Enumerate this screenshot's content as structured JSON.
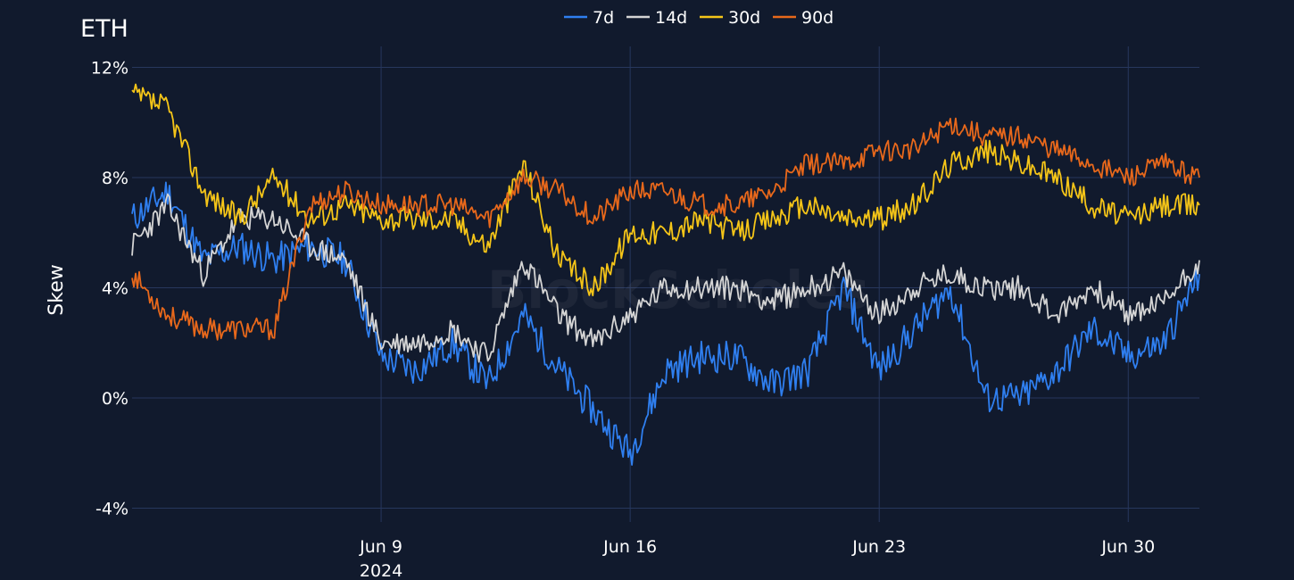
{
  "chart_data": {
    "type": "line",
    "title": "ETH",
    "ylabel": "Skew",
    "xlabel": "",
    "watermark": "BlockScholes",
    "x_ticks": [
      {
        "date": "2024-06-09",
        "label": "Jun 9",
        "sublabel": "2024"
      },
      {
        "date": "2024-06-16",
        "label": "Jun 16",
        "sublabel": ""
      },
      {
        "date": "2024-06-23",
        "label": "Jun 23",
        "sublabel": ""
      },
      {
        "date": "2024-06-30",
        "label": "Jun 30",
        "sublabel": ""
      }
    ],
    "xlim": [
      "2024-06-02",
      "2024-07-02"
    ],
    "y_ticks": [
      {
        "value": 12,
        "label": "12%"
      },
      {
        "value": 8,
        "label": "8%"
      },
      {
        "value": 4,
        "label": "4%"
      },
      {
        "value": 0,
        "label": "0%"
      },
      {
        "value": -4,
        "label": "-4%"
      }
    ],
    "ylim": [
      -4.5,
      12.5
    ],
    "grid": true,
    "legend_position": "top-center",
    "colors": {
      "background": "#111a2d",
      "grid": "#27375d"
    },
    "x_dates": [
      "2024-06-02",
      "2024-06-03",
      "2024-06-04",
      "2024-06-05",
      "2024-06-06",
      "2024-06-07",
      "2024-06-08",
      "2024-06-09",
      "2024-06-10",
      "2024-06-11",
      "2024-06-12",
      "2024-06-13",
      "2024-06-14",
      "2024-06-15",
      "2024-06-16",
      "2024-06-17",
      "2024-06-18",
      "2024-06-19",
      "2024-06-20",
      "2024-06-21",
      "2024-06-22",
      "2024-06-23",
      "2024-06-24",
      "2024-06-25",
      "2024-06-26",
      "2024-06-27",
      "2024-06-28",
      "2024-06-29",
      "2024-06-30",
      "2024-07-01",
      "2024-07-02"
    ],
    "series": [
      {
        "name": "7d",
        "color": "#2f7ff0",
        "values": [
          6.5,
          7.5,
          5.0,
          5.5,
          5.0,
          5.5,
          5.0,
          1.5,
          1.0,
          2.0,
          0.5,
          3.0,
          1.0,
          -0.5,
          -2.0,
          1.0,
          1.5,
          1.5,
          0.5,
          1.0,
          4.0,
          1.0,
          2.5,
          4.0,
          0.0,
          0.0,
          1.0,
          2.5,
          1.5,
          2.0,
          4.5
        ]
      },
      {
        "name": "14d",
        "color": "#d4d4d4",
        "values": [
          5.5,
          7.0,
          4.5,
          6.5,
          6.5,
          5.5,
          5.0,
          2.0,
          2.0,
          2.5,
          1.5,
          5.0,
          3.0,
          2.0,
          3.0,
          4.0,
          4.0,
          4.0,
          3.5,
          4.0,
          4.5,
          3.0,
          4.0,
          4.5,
          4.0,
          4.0,
          3.0,
          4.0,
          3.0,
          3.5,
          5.0
        ]
      },
      {
        "name": "30d",
        "color": "#f5c518",
        "values": [
          11.0,
          10.5,
          7.5,
          6.5,
          8.0,
          6.5,
          7.0,
          6.5,
          6.5,
          6.5,
          5.5,
          8.5,
          5.0,
          4.0,
          6.0,
          6.0,
          6.5,
          6.0,
          6.5,
          7.0,
          6.5,
          6.5,
          7.0,
          8.5,
          9.0,
          8.5,
          8.0,
          7.0,
          6.5,
          7.0,
          7.0
        ]
      },
      {
        "name": "90d",
        "color": "#e8681b",
        "values": [
          4.5,
          3.0,
          2.5,
          2.5,
          2.5,
          7.0,
          7.5,
          7.0,
          7.0,
          7.0,
          6.5,
          8.0,
          7.5,
          6.5,
          7.5,
          7.5,
          7.0,
          7.0,
          7.5,
          8.5,
          8.5,
          9.0,
          9.0,
          10.0,
          9.5,
          9.5,
          9.0,
          8.5,
          8.0,
          8.5,
          8.0
        ]
      }
    ]
  }
}
